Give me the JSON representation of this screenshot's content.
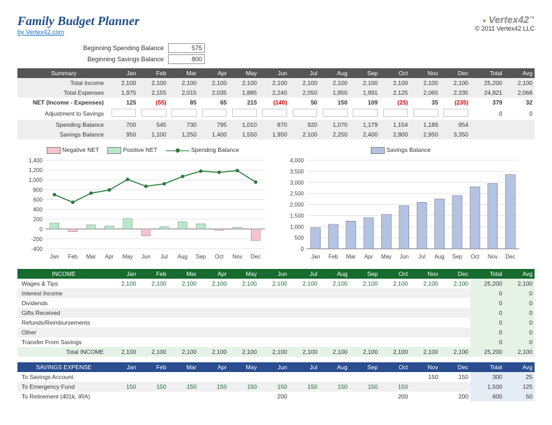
{
  "header": {
    "title": "Family Budget Planner",
    "link": "by Vertex42.com",
    "brand": "Vertex42",
    "copyright": "© 2011 Vertex42 LLC"
  },
  "balances": {
    "spending_label": "Beginning Spending Balance",
    "spending_val": "575",
    "savings_label": "Beginning Savings Balance",
    "savings_val": "800"
  },
  "months": [
    "Jan",
    "Feb",
    "Mar",
    "Apr",
    "May",
    "Jun",
    "Jul",
    "Aug",
    "Sep",
    "Oct",
    "Nov",
    "Dec"
  ],
  "summary": {
    "header": "Summary",
    "rows": [
      {
        "label": "Total Income",
        "vals": [
          "2,100",
          "2,100",
          "2,100",
          "2,100",
          "2,100",
          "2,100",
          "2,100",
          "2,100",
          "2,100",
          "2,100",
          "2,100",
          "2,100"
        ],
        "total": "25,200",
        "avg": "2,100",
        "shade": true
      },
      {
        "label": "Total Expenses",
        "vals": [
          "1,975",
          "2,155",
          "2,015",
          "2,035",
          "1,885",
          "2,240",
          "2,050",
          "1,950",
          "1,991",
          "2,125",
          "2,065",
          "2,335"
        ],
        "total": "24,821",
        "avg": "2,068",
        "shade": true
      },
      {
        "label": "NET (Income - Expenses)",
        "vals": [
          "125",
          "(55)",
          "85",
          "65",
          "215",
          "(140)",
          "50",
          "150",
          "109",
          "(25)",
          "35",
          "(235)"
        ],
        "total": "379",
        "avg": "32",
        "neg_idx": [
          1,
          5,
          9,
          11
        ],
        "bold": true
      },
      {
        "label": "Adjustment to Savings",
        "edit": true,
        "total": "0",
        "avg": "0"
      },
      {
        "label": "Spending Balance",
        "vals": [
          "700",
          "545",
          "730",
          "795",
          "1,010",
          "870",
          "920",
          "1,070",
          "1,179",
          "1,154",
          "1,189",
          "954"
        ],
        "total": "",
        "avg": "",
        "shade": true
      },
      {
        "label": "Savings Balance",
        "vals": [
          "950",
          "1,100",
          "1,250",
          "1,400",
          "1,550",
          "1,950",
          "2,100",
          "2,250",
          "2,400",
          "2,800",
          "2,950",
          "3,350"
        ],
        "total": "",
        "avg": "",
        "shade": true
      }
    ],
    "total_hdr": "Total",
    "avg_hdr": "Avg"
  },
  "chart_left": {
    "legend": {
      "neg": "Negative NET",
      "pos": "Positive NET",
      "spend": "Spending Balance"
    },
    "yticks": [
      -400,
      -200,
      0,
      200,
      400,
      600,
      800,
      1000,
      1200,
      1400
    ],
    "net": [
      125,
      -55,
      85,
      65,
      215,
      -140,
      50,
      150,
      109,
      -25,
      35,
      -235
    ],
    "spending": [
      700,
      545,
      730,
      795,
      1010,
      870,
      920,
      1070,
      1179,
      1154,
      1189,
      954
    ],
    "pos_color": "#b8e8c8",
    "neg_color": "#f5c4cc",
    "line_color": "#2a7a3a",
    "ylim": [
      -400,
      1400
    ]
  },
  "chart_right": {
    "legend": "Savings Balance",
    "yticks": [
      0,
      500,
      1000,
      1500,
      2000,
      2500,
      3000,
      3500,
      4000
    ],
    "data": [
      950,
      1100,
      1250,
      1400,
      1550,
      1950,
      2100,
      2250,
      2400,
      2800,
      2950,
      3350
    ],
    "bar_color": "#b5c3e3",
    "ylim": [
      0,
      4000
    ]
  },
  "income": {
    "header": "INCOME",
    "rows": [
      {
        "label": "Wages & Tips",
        "vals": [
          "2,100",
          "2,100",
          "2,100",
          "2,100",
          "2,100",
          "2,100",
          "2,100",
          "2,100",
          "2,100",
          "2,100",
          "2,100",
          "2,100"
        ],
        "total": "25,200",
        "avg": "2,100",
        "color": "#176b2f"
      },
      {
        "label": "Interest Income",
        "empty": true,
        "total": "0",
        "avg": "0"
      },
      {
        "label": "Dividends",
        "empty": true,
        "total": "0",
        "avg": "0"
      },
      {
        "label": "Gifts Received",
        "empty": true,
        "total": "0",
        "avg": "0"
      },
      {
        "label": "Refunds/Reimbursements",
        "empty": true,
        "total": "0",
        "avg": "0"
      },
      {
        "label": "Other",
        "empty": true,
        "total": "0",
        "avg": "0"
      },
      {
        "label": "Transfer From Savings",
        "empty": true,
        "total": "0",
        "avg": "0"
      }
    ],
    "total_row": {
      "label": "Total INCOME",
      "vals": [
        "2,100",
        "2,100",
        "2,100",
        "2,100",
        "2,100",
        "2,100",
        "2,100",
        "2,100",
        "2,100",
        "2,100",
        "2,100",
        "2,100"
      ],
      "total": "25,200",
      "avg": "2,100"
    }
  },
  "savings_exp": {
    "header": "SAVINGS EXPENSE",
    "rows": [
      {
        "label": "To Savings Account",
        "vals": [
          "",
          "",
          "",
          "",
          "",
          "",
          "",
          "",
          "",
          "",
          "150",
          "150"
        ],
        "total": "300",
        "avg": "25"
      },
      {
        "label": "To Emergency Fund",
        "vals": [
          "150",
          "150",
          "150",
          "150",
          "150",
          "150",
          "150",
          "150",
          "150",
          "150",
          "",
          ""
        ],
        "total": "1,500",
        "avg": "125",
        "color": "#176b2f"
      },
      {
        "label": "To Retirement (401k, IRA)",
        "vals": [
          "",
          "",
          "",
          "",
          "",
          "200",
          "",
          "",
          "",
          "200",
          "",
          "200"
        ],
        "total": "600",
        "avg": "50"
      }
    ]
  }
}
